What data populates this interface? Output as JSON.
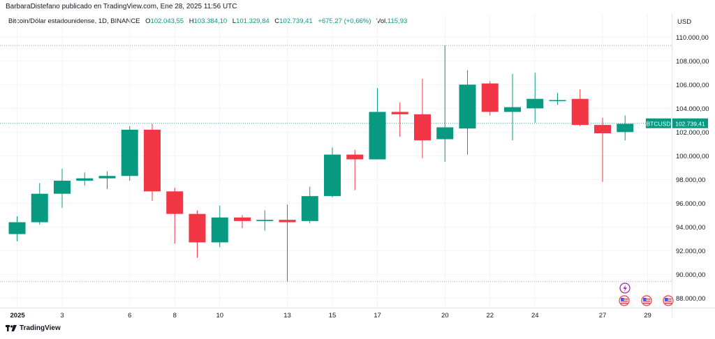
{
  "header": {
    "publish_line": "BarbaraDistefano publicado en TradingView.com, Ene 28, 2025 11:56 UTC"
  },
  "legend": {
    "symbol_line": "Bitcoin/Dólar estadounidense, 1D, BINANCE",
    "open_label": "O",
    "open_value": "102.043,55",
    "high_label": "H",
    "high_value": "103.384,10",
    "low_label": "L",
    "low_value": "101.329,84",
    "close_label": "C",
    "close_value": "102.739,41",
    "change_value": "+675,27 (+0,66%)",
    "volume_label": "Vol.",
    "volume_value": "115,93"
  },
  "axis": {
    "currency": "USD"
  },
  "footer": {
    "brand": "TradingView"
  },
  "colors": {
    "up": "#089981",
    "down": "#f23645",
    "grid": "#f0f3fa",
    "text": "#131722"
  },
  "chart_data": {
    "type": "candlestick",
    "symbol": "BTCUSD",
    "last_price_label": "102.739,41",
    "last_price": 102739.41,
    "ylim": [
      87200,
      110900
    ],
    "y_ticks": [
      88000,
      90000,
      92000,
      94000,
      96000,
      98000,
      100000,
      102000,
      104000,
      106000,
      108000,
      110000
    ],
    "y_tick_labels": [
      "88.000,00",
      "90.000,00",
      "92.000,00",
      "94.000,00",
      "96.000,00",
      "98.000,00",
      "100.000,00",
      "102.000,00",
      "104.000,00",
      "106.000,00",
      "108.000,00",
      "110.000,00"
    ],
    "x_tick_labels": [
      {
        "i": 0,
        "label": "2025",
        "bold": true
      },
      {
        "i": 2,
        "label": "3"
      },
      {
        "i": 5,
        "label": "6"
      },
      {
        "i": 7,
        "label": "8"
      },
      {
        "i": 9,
        "label": "10"
      },
      {
        "i": 12,
        "label": "13"
      },
      {
        "i": 14,
        "label": "15"
      },
      {
        "i": 16,
        "label": "17"
      },
      {
        "i": 19,
        "label": "20"
      },
      {
        "i": 21,
        "label": "22"
      },
      {
        "i": 23,
        "label": "24"
      },
      {
        "i": 26,
        "label": "27"
      },
      {
        "i": 28,
        "label": "29"
      }
    ],
    "high_line": 109300,
    "low_line": 89400,
    "candles": [
      {
        "date": "2025-01-01",
        "o": 93400,
        "h": 94900,
        "l": 92800,
        "c": 94400
      },
      {
        "date": "2025-01-02",
        "o": 94400,
        "h": 97700,
        "l": 94200,
        "c": 96800
      },
      {
        "date": "2025-01-03",
        "o": 96800,
        "h": 98900,
        "l": 95600,
        "c": 97900
      },
      {
        "date": "2025-01-04",
        "o": 97900,
        "h": 98600,
        "l": 97500,
        "c": 98100
      },
      {
        "date": "2025-01-05",
        "o": 98100,
        "h": 98700,
        "l": 97200,
        "c": 98300
      },
      {
        "date": "2025-01-06",
        "o": 98300,
        "h": 102500,
        "l": 97900,
        "c": 102200
      },
      {
        "date": "2025-01-07",
        "o": 102200,
        "h": 102700,
        "l": 96200,
        "c": 97000
      },
      {
        "date": "2025-01-08",
        "o": 97000,
        "h": 97300,
        "l": 92600,
        "c": 95100
      },
      {
        "date": "2025-01-09",
        "o": 95100,
        "h": 95400,
        "l": 91400,
        "c": 92700
      },
      {
        "date": "2025-01-10",
        "o": 92700,
        "h": 95800,
        "l": 92300,
        "c": 94800
      },
      {
        "date": "2025-01-11",
        "o": 94800,
        "h": 95000,
        "l": 93900,
        "c": 94500
      },
      {
        "date": "2025-01-12",
        "o": 94500,
        "h": 95400,
        "l": 93700,
        "c": 94600
      },
      {
        "date": "2025-01-13",
        "o": 94600,
        "h": 95900,
        "l": 89400,
        "c": 94400
      },
      {
        "date": "2025-01-14",
        "o": 94500,
        "h": 97400,
        "l": 94300,
        "c": 96600
      },
      {
        "date": "2025-01-15",
        "o": 96600,
        "h": 100700,
        "l": 96500,
        "c": 100100
      },
      {
        "date": "2025-01-16",
        "o": 100100,
        "h": 100500,
        "l": 97100,
        "c": 99700
      },
      {
        "date": "2025-01-17",
        "o": 99700,
        "h": 105700,
        "l": 99700,
        "c": 103700
      },
      {
        "date": "2025-01-18",
        "o": 103700,
        "h": 104500,
        "l": 101600,
        "c": 103500
      },
      {
        "date": "2025-01-19",
        "o": 103500,
        "h": 106500,
        "l": 99800,
        "c": 101300
      },
      {
        "date": "2025-01-20",
        "o": 101400,
        "h": 109300,
        "l": 99500,
        "c": 102400
      },
      {
        "date": "2025-01-21",
        "o": 102300,
        "h": 107200,
        "l": 100100,
        "c": 106000
      },
      {
        "date": "2025-01-22",
        "o": 106100,
        "h": 106300,
        "l": 103400,
        "c": 103700
      },
      {
        "date": "2025-01-23",
        "o": 103700,
        "h": 106900,
        "l": 101300,
        "c": 104100
      },
      {
        "date": "2025-01-24",
        "o": 104000,
        "h": 107000,
        "l": 102800,
        "c": 104800
      },
      {
        "date": "2025-01-25",
        "o": 104700,
        "h": 105300,
        "l": 104300,
        "c": 104700
      },
      {
        "date": "2025-01-26",
        "o": 104800,
        "h": 105600,
        "l": 102500,
        "c": 102600
      },
      {
        "date": "2025-01-27",
        "o": 102600,
        "h": 103200,
        "l": 97800,
        "c": 101900
      },
      {
        "date": "2025-01-28",
        "o": 102000,
        "h": 103400,
        "l": 101300,
        "c": 102700
      }
    ]
  }
}
